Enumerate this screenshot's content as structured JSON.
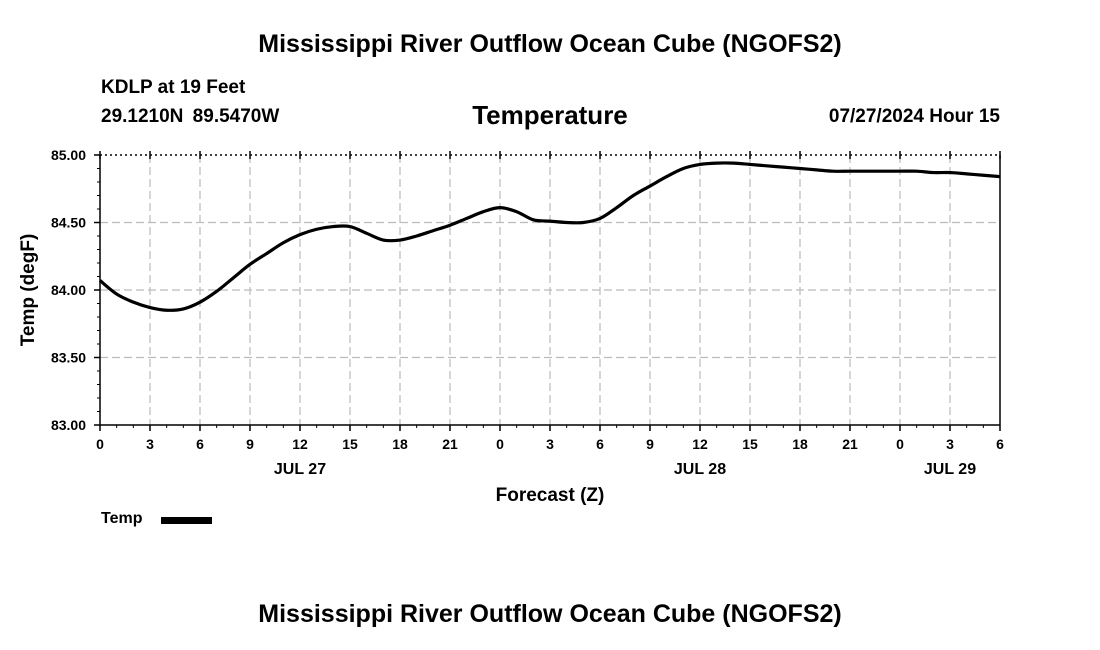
{
  "header": {
    "title": "Mississippi River Outflow Ocean Cube (NGOFS2)",
    "station_name": "KDLP at 19 Feet",
    "station_coords": "29.1210N  89.5470W",
    "chart_title": "Temperature",
    "run_time": "07/27/2024 Hour 15"
  },
  "footer": {
    "title": "Mississippi River Outflow Ocean Cube (NGOFS2)"
  },
  "legend": {
    "label": "Temp"
  },
  "chart_data": {
    "type": "line",
    "title": "Temperature",
    "xlabel": "Forecast (Z)",
    "ylabel": "Temp (degF)",
    "ylim": [
      83.0,
      85.0
    ],
    "yticks": [
      "83.00",
      "83.50",
      "84.00",
      "84.50",
      "85.00"
    ],
    "xlim_hours": [
      0,
      54
    ],
    "xtick_labels": [
      "0",
      "3",
      "6",
      "9",
      "12",
      "15",
      "18",
      "21",
      "0",
      "3",
      "6",
      "9",
      "12",
      "15",
      "18",
      "21",
      "0",
      "3",
      "6"
    ],
    "date_labels": [
      {
        "hour": 12,
        "label": "JUL 27"
      },
      {
        "hour": 36,
        "label": "JUL 28"
      },
      {
        "hour": 51,
        "label": "JUL 29"
      }
    ],
    "grid": true,
    "legend": "bottom-left",
    "series": [
      {
        "name": "Temp",
        "color": "#000000",
        "x": [
          0,
          1,
          2,
          3,
          4,
          5,
          6,
          7,
          8,
          9,
          10,
          11,
          12,
          13,
          14,
          15,
          16,
          17,
          18,
          19,
          20,
          21,
          22,
          23,
          24,
          25,
          26,
          27,
          28,
          29,
          30,
          31,
          32,
          33,
          34,
          35,
          36,
          37,
          38,
          39,
          40,
          41,
          42,
          43,
          44,
          45,
          46,
          47,
          48,
          49,
          50,
          51,
          52,
          53,
          54
        ],
        "y": [
          84.07,
          83.97,
          83.91,
          83.87,
          83.85,
          83.86,
          83.91,
          83.99,
          84.09,
          84.19,
          84.27,
          84.35,
          84.41,
          84.45,
          84.47,
          84.47,
          84.42,
          84.37,
          84.37,
          84.4,
          84.44,
          84.48,
          84.53,
          84.58,
          84.61,
          84.58,
          84.52,
          84.51,
          84.5,
          84.5,
          84.53,
          84.61,
          84.7,
          84.77,
          84.84,
          84.9,
          84.93,
          84.94,
          84.94,
          84.93,
          84.92,
          84.91,
          84.9,
          84.89,
          84.88,
          84.88,
          84.88,
          84.88,
          84.88,
          84.88,
          84.87,
          84.87,
          84.86,
          84.85,
          84.84
        ]
      }
    ]
  }
}
